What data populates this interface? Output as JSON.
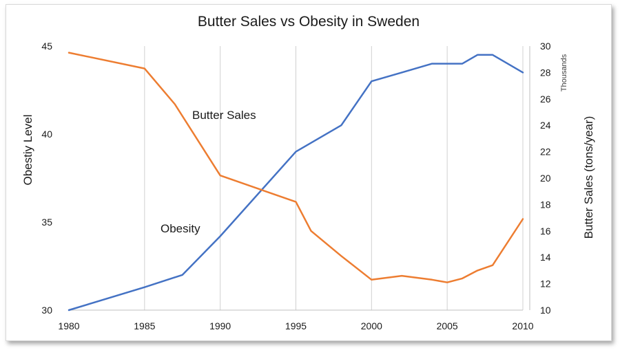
{
  "chart_data": {
    "type": "line",
    "title": "Butter Sales vs Obesity in Sweden",
    "ylabel_left": "Obestiy Level",
    "ylabel_right": "Butter Sales (tons/year)",
    "right_axis_unit": "Thousands",
    "xlim": [
      1980,
      2010
    ],
    "ylim_left": [
      30,
      45
    ],
    "ylim_right": [
      10,
      30
    ],
    "x_ticks": [
      "1980",
      "1985",
      "1990",
      "1995",
      "2000",
      "2005",
      "2010"
    ],
    "y_ticks_left": [
      "30",
      "35",
      "40",
      "45"
    ],
    "y_ticks_right": [
      "10",
      "12",
      "14",
      "16",
      "18",
      "20",
      "22",
      "24",
      "26",
      "28",
      "30"
    ],
    "grid": "vertical",
    "annotations": [
      {
        "text": "Butter Sales",
        "series": "Butter Sales"
      },
      {
        "text": "Obesity",
        "series": "Obesity"
      }
    ],
    "series": [
      {
        "name": "Obesity",
        "axis": "left",
        "color": "#4472c4",
        "x": [
          1980,
          1985,
          1987.5,
          1990,
          1995,
          1998,
          2000,
          2002,
          2004,
          2005,
          2006,
          2007,
          2008,
          2010
        ],
        "values": [
          30,
          31.3,
          32,
          34.2,
          39,
          40.5,
          43,
          43.5,
          44,
          44,
          44,
          44.5,
          44.5,
          43.5
        ]
      },
      {
        "name": "Butter Sales",
        "axis": "right",
        "color": "#ed7d31",
        "x": [
          1980,
          1985,
          1987,
          1990,
          1995,
          1996,
          1998,
          2000,
          2002,
          2004,
          2005,
          2006,
          2007,
          2008,
          2010
        ],
        "values": [
          29.5,
          28.3,
          25.6,
          20.2,
          18.2,
          16,
          14.1,
          12.3,
          12.6,
          12.3,
          12.1,
          12.4,
          13,
          13.4,
          16.9
        ]
      }
    ]
  }
}
